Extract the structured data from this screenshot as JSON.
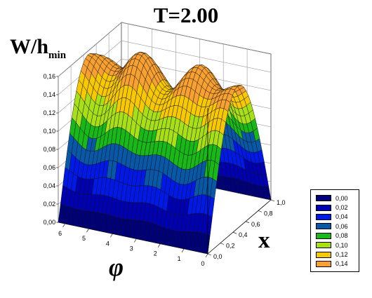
{
  "chart_data": {
    "type": "surface3d",
    "title": "T=2.00",
    "zlabel": {
      "main": "W/h",
      "sub": "min"
    },
    "xlabel": "x",
    "ylabel": "φ",
    "x_ticks": [
      "0,0",
      "0,2",
      "0,4",
      "0,6",
      "0,8",
      "1,0"
    ],
    "phi_ticks": [
      "0",
      "1",
      "2",
      "3",
      "4",
      "5",
      "6"
    ],
    "z_ticks": [
      "0,00",
      "0,02",
      "0,04",
      "0,06",
      "0,08",
      "0,10",
      "0,12",
      "0,14",
      "0,16"
    ],
    "xlim": [
      0,
      1
    ],
    "philim": [
      0,
      6.28
    ],
    "zlim": [
      0,
      0.16
    ],
    "surface_shape": "sin(pi*x) ridge with phi-periodic waves, peak about 0.155",
    "legend": [
      {
        "label": "0,00",
        "color": "#00007a"
      },
      {
        "label": "0,02",
        "color": "#0000b4"
      },
      {
        "label": "0,04",
        "color": "#0018e8"
      },
      {
        "label": "0,06",
        "color": "#0858a8"
      },
      {
        "label": "0,08",
        "color": "#18b818"
      },
      {
        "label": "0,10",
        "color": "#a8e018"
      },
      {
        "label": "0,12",
        "color": "#f8c800"
      },
      {
        "label": "0,14",
        "color": "#f8a030"
      }
    ]
  }
}
